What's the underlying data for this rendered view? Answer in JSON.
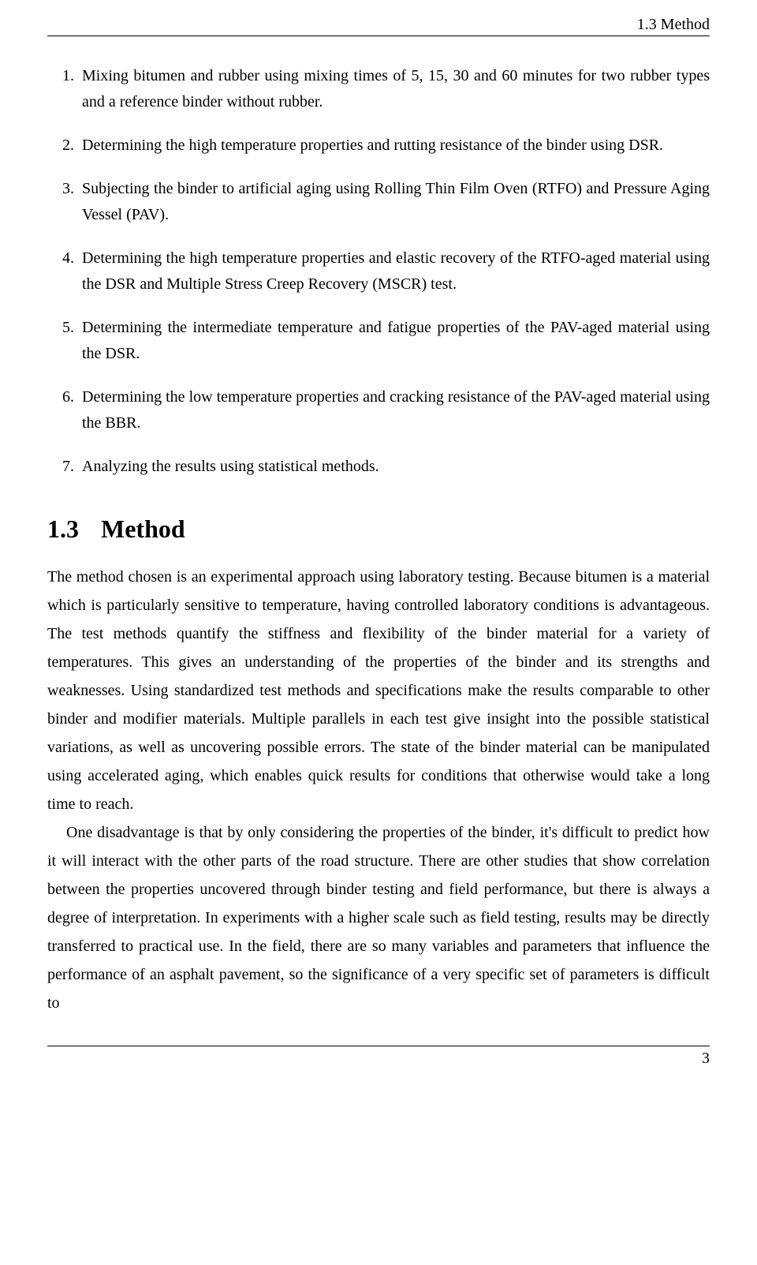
{
  "header": {
    "running_head": "1.3 Method"
  },
  "list": {
    "items": [
      {
        "num": "1.",
        "text": "Mixing bitumen and rubber using mixing times of 5, 15, 30 and 60 minutes for two rubber types and a reference binder without rubber."
      },
      {
        "num": "2.",
        "text": "Determining the high temperature properties and rutting resistance of the binder using DSR."
      },
      {
        "num": "3.",
        "text": "Subjecting the binder to artificial aging using Rolling Thin Film Oven (RTFO) and Pressure Aging Vessel (PAV)."
      },
      {
        "num": "4.",
        "text": "Determining the high temperature properties and elastic recovery of the RTFO-aged material using the DSR and Multiple Stress Creep Recovery (MSCR) test."
      },
      {
        "num": "5.",
        "text": "Determining the intermediate temperature and fatigue properties of the PAV-aged material using the DSR."
      },
      {
        "num": "6.",
        "text": "Determining the low temperature properties and cracking resistance of the PAV-aged material using the BBR."
      },
      {
        "num": "7.",
        "text": "Analyzing the results using statistical methods."
      }
    ]
  },
  "section": {
    "number": "1.3",
    "title": "Method",
    "paragraphs": [
      "The method chosen is an experimental approach using laboratory testing. Because bitumen is a material which is particularly sensitive to temperature, having controlled laboratory conditions is advantageous. The test methods quantify the stiffness and flexibility of the binder material for a variety of temperatures. This gives an understanding of the properties of the binder and its strengths and weaknesses. Using standardized test methods and specifications make the results comparable to other binder and modifier materials. Multiple parallels in each test give insight into the possible statistical variations, as well as uncovering possible errors. The state of the binder material can be manipulated using accelerated aging, which enables quick results for conditions that otherwise would take a long time to reach.",
      "One disadvantage is that by only considering the properties of the binder, it's difficult to predict how it will interact with the other parts of the road structure. There are other studies that show correlation between the properties uncovered through binder testing and field performance, but there is always a degree of interpretation. In experiments with a higher scale such as field testing, results may be directly transferred to practical use. In the field, there are so many variables and parameters that influence the performance of an asphalt pavement, so the significance of a very specific set of parameters is difficult to"
    ]
  },
  "footer": {
    "page_number": "3"
  },
  "style": {
    "font_family": "Times New Roman",
    "body_fontsize_pt": 15,
    "heading_fontsize_pt": 24,
    "text_color": "#000000",
    "background_color": "#ffffff",
    "rule_color": "#000000",
    "line_height": 1.8
  }
}
